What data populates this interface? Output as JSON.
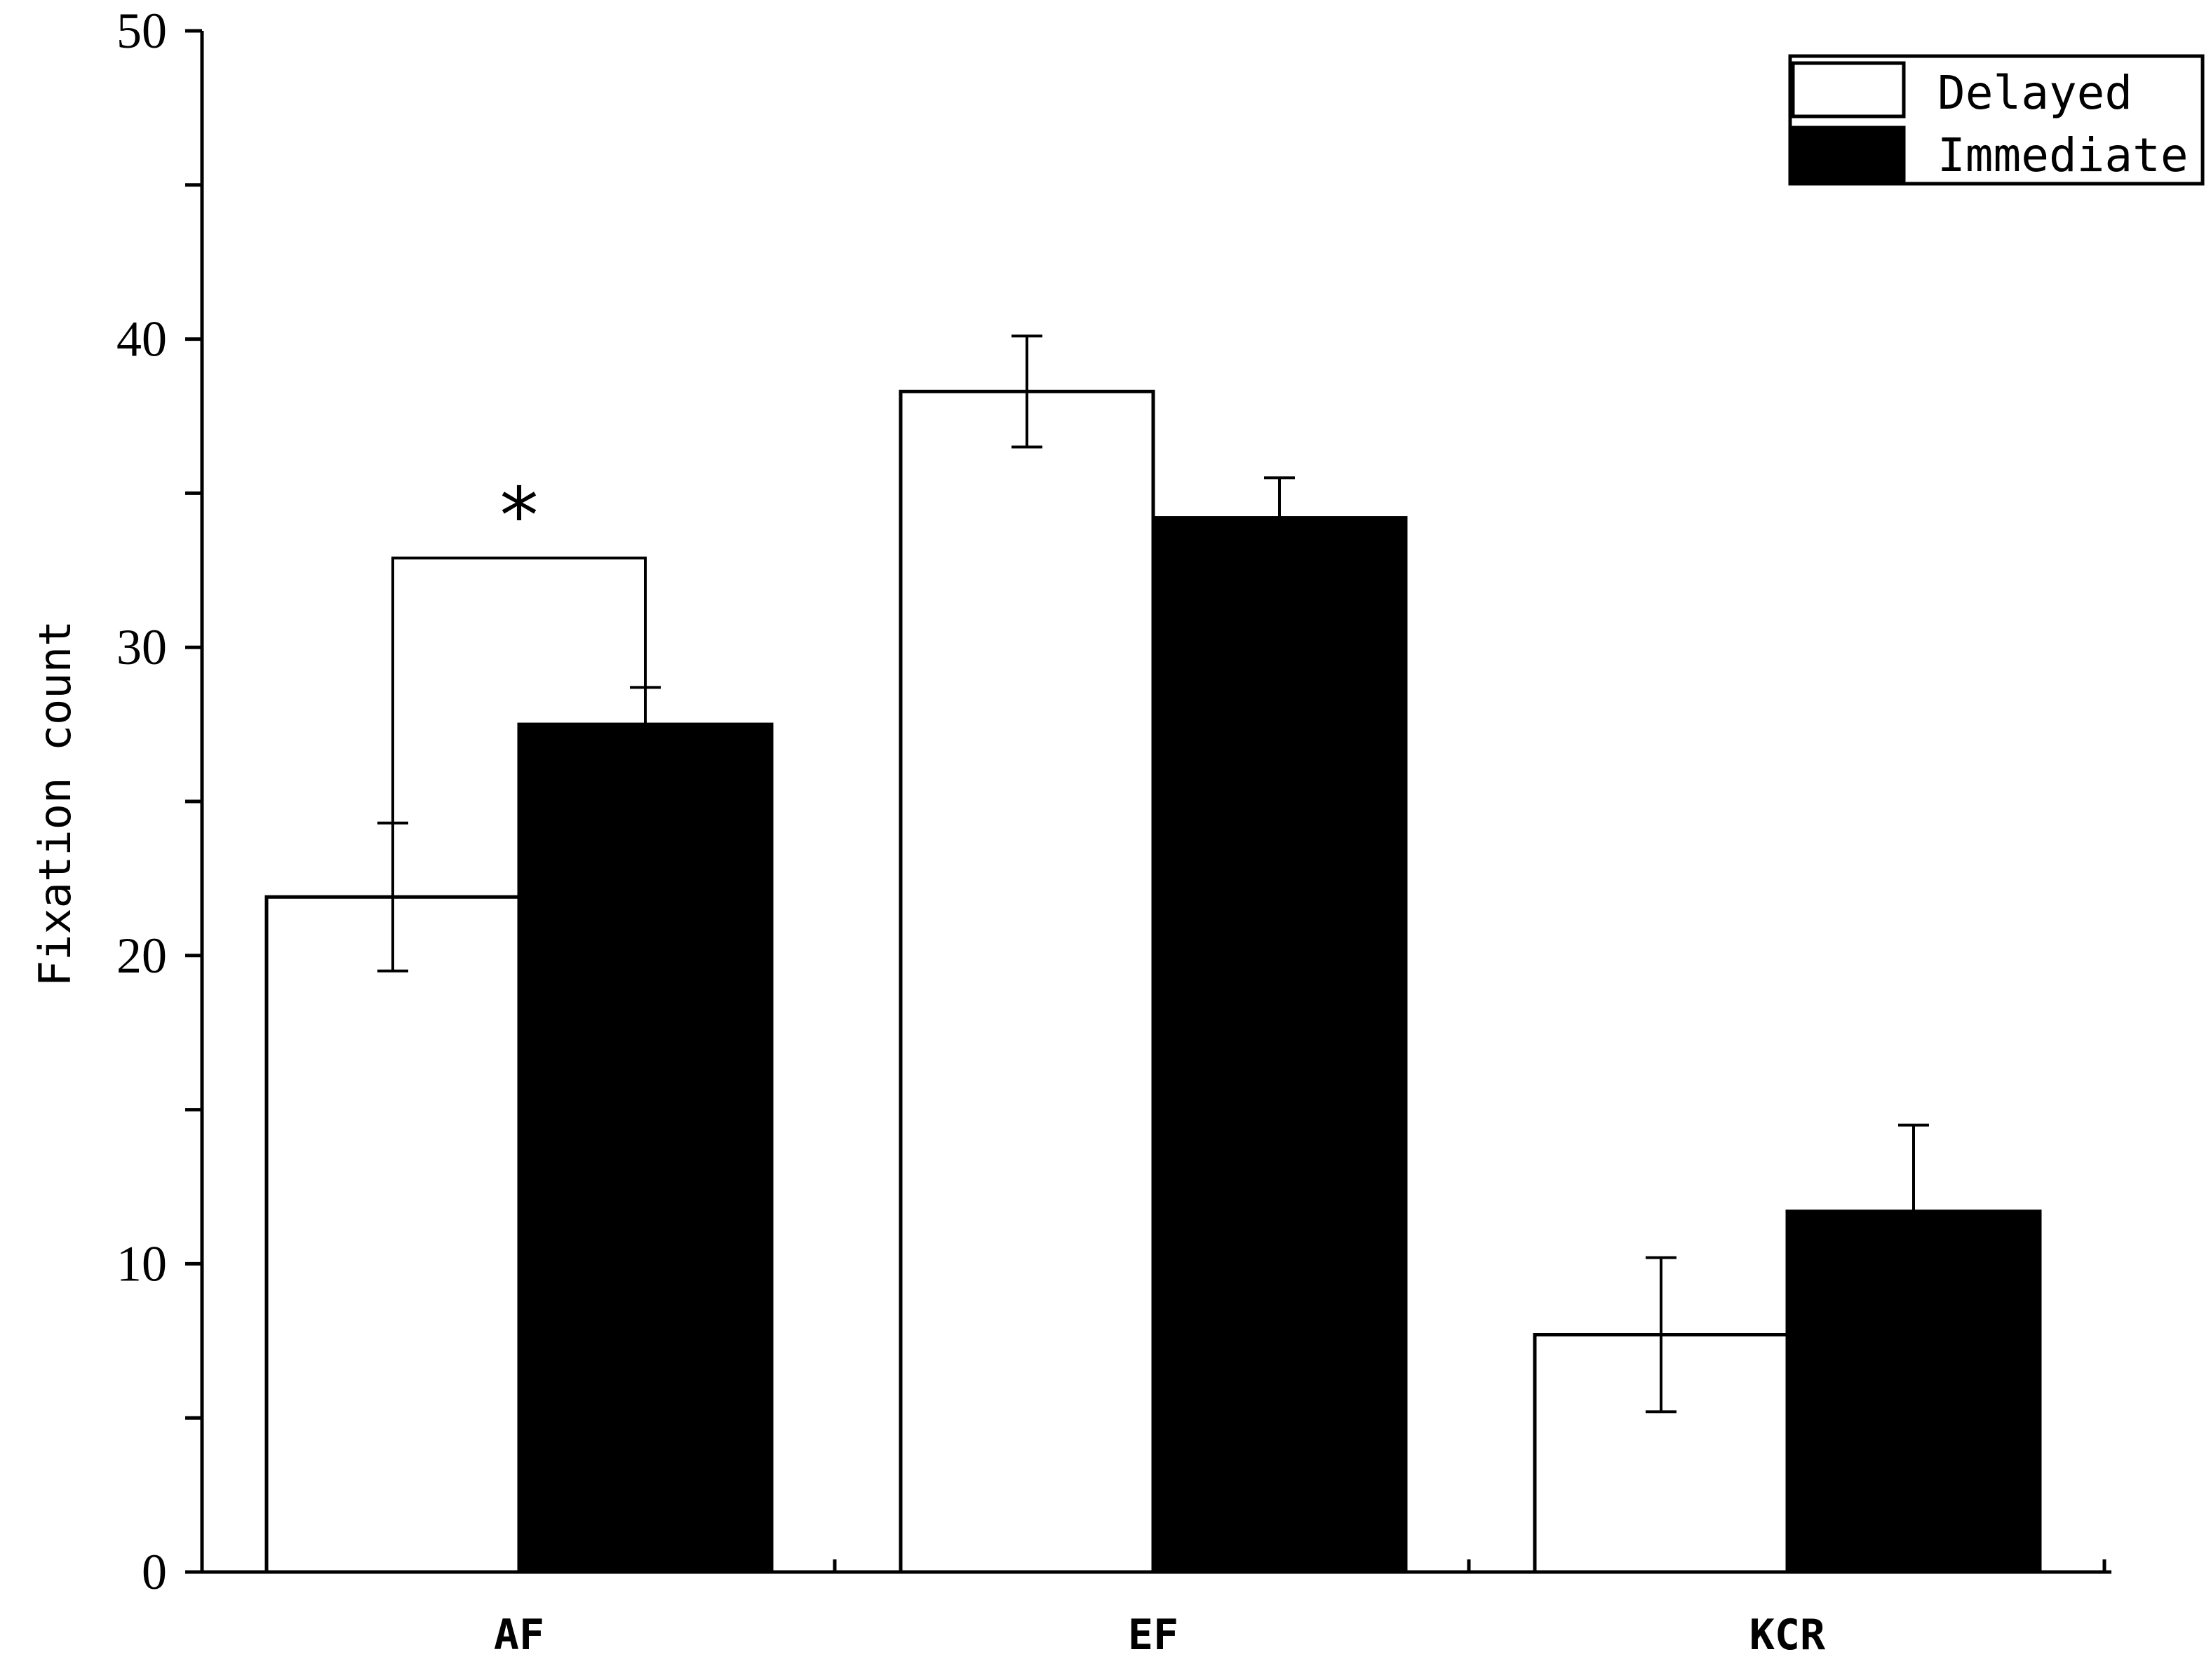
{
  "chart_data": {
    "type": "bar",
    "title": "",
    "xlabel": "",
    "ylabel": "Fixation count",
    "ylim": [
      0,
      50
    ],
    "y_ticks": [
      0,
      10,
      20,
      30,
      40,
      50
    ],
    "y_tick_labels": [
      "0",
      "10",
      "20",
      "30",
      "40",
      "50"
    ],
    "categories": [
      "AF",
      "EF",
      "KCR"
    ],
    "series": [
      {
        "name": "Delayed",
        "fill": "#ffffff",
        "values": [
          21.9,
          38.3,
          7.7
        ],
        "error": [
          2.4,
          1.8,
          2.5
        ]
      },
      {
        "name": "Immediate",
        "fill": "#000000",
        "values": [
          27.5,
          34.2,
          11.7
        ],
        "error": [
          1.2,
          1.3,
          2.8
        ]
      }
    ],
    "annotations": [
      {
        "text": "*",
        "category": "AF",
        "bracket_y": 32.9
      }
    ],
    "legend_position": "top-right",
    "grid": false
  }
}
